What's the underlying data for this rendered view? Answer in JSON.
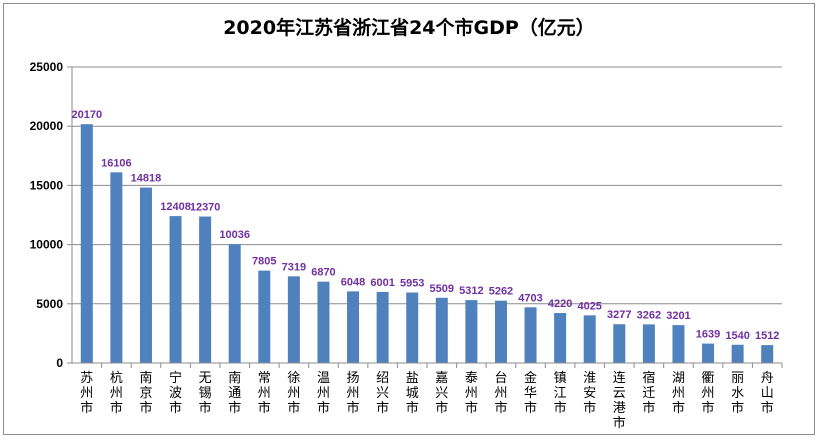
{
  "chart_data": {
    "type": "bar",
    "title": "2020年江苏省浙江省24个市GDP（亿元）",
    "xlabel": "",
    "ylabel": "",
    "ylim": [
      0,
      25000
    ],
    "yticks": [
      0,
      5000,
      10000,
      15000,
      20000,
      25000
    ],
    "grid": true,
    "legend": "none",
    "categories": [
      "苏州市",
      "杭州市",
      "南京市",
      "宁波市",
      "无锡市",
      "南通市",
      "常州市",
      "徐州市",
      "温州市",
      "扬州市",
      "绍兴市",
      "盐城市",
      "嘉兴市",
      "泰州市",
      "台州市",
      "金华市",
      "镇江市",
      "淮安市",
      "连云港市",
      "宿迁市",
      "湖州市",
      "衢州市",
      "丽水市",
      "舟山市"
    ],
    "values": [
      20170,
      16106,
      14818,
      12408,
      12370,
      10036,
      7805,
      7319,
      6870,
      6048,
      6001,
      5953,
      5509,
      5312,
      5262,
      4703,
      4220,
      4025,
      3277,
      3262,
      3201,
      1639,
      1540,
      1512
    ],
    "bar_color": "#4f81bd",
    "label_color": "#7030a0"
  }
}
